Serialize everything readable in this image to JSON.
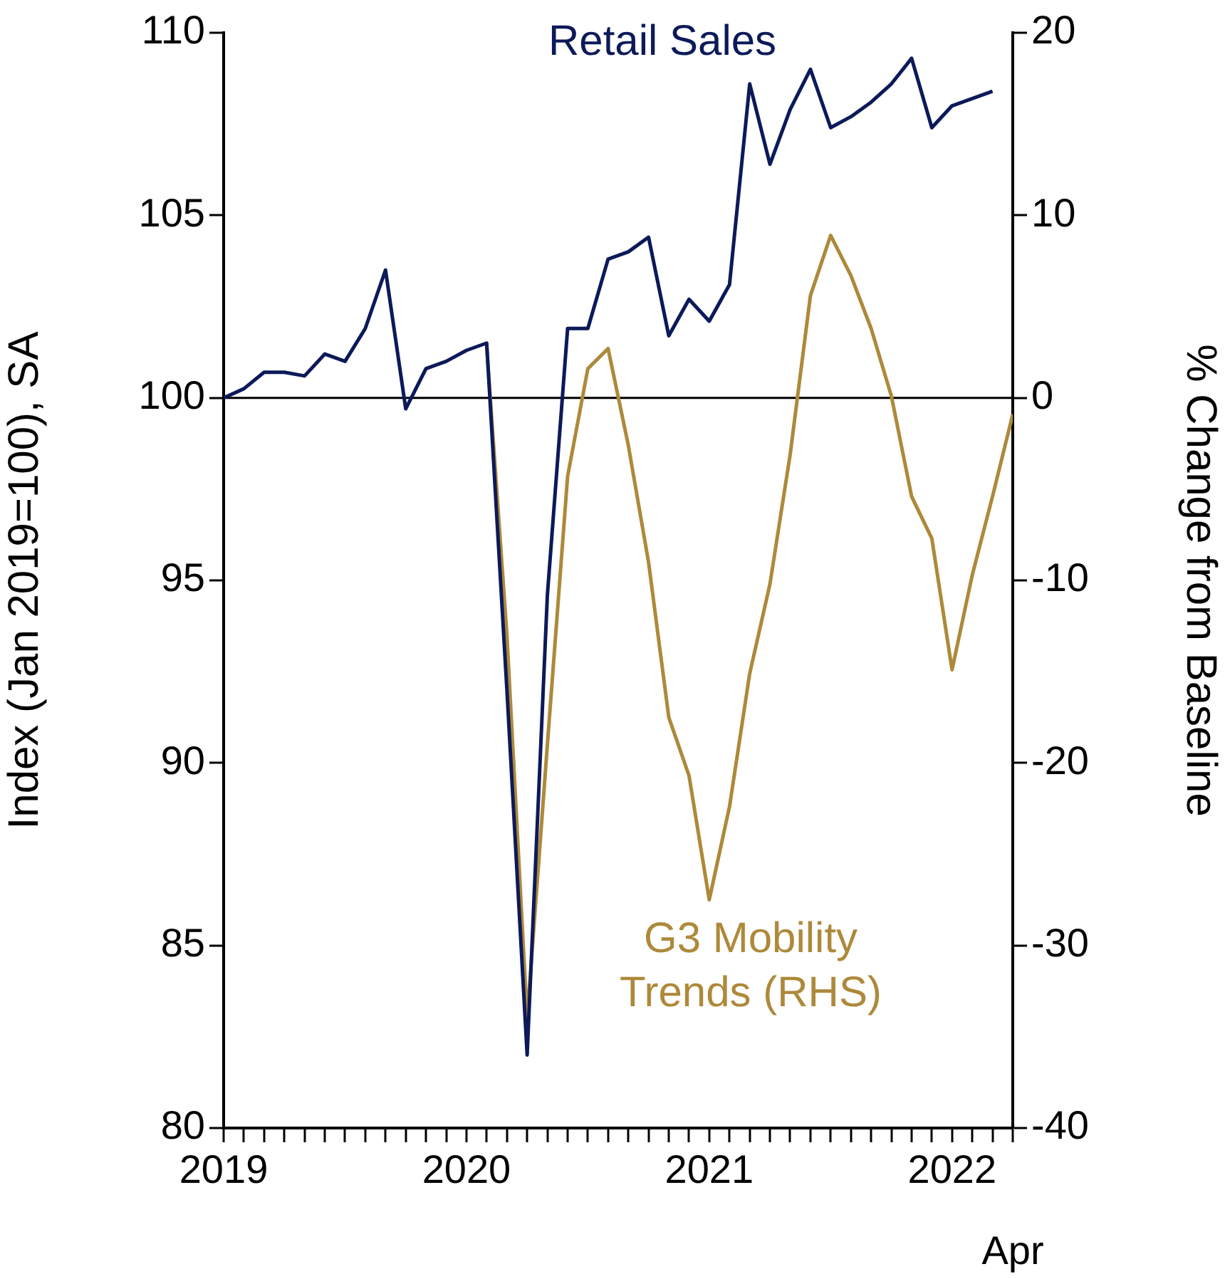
{
  "chart_data": {
    "type": "line",
    "ylabel": "Index (Jan 2019=100), SA",
    "y2label": "% Change from Baseline",
    "x": [
      "2019-01",
      "2019-02",
      "2019-03",
      "2019-04",
      "2019-05",
      "2019-06",
      "2019-07",
      "2019-08",
      "2019-09",
      "2019-10",
      "2019-11",
      "2019-12",
      "2020-01",
      "2020-02",
      "2020-03",
      "2020-04",
      "2020-05",
      "2020-06",
      "2020-07",
      "2020-08",
      "2020-09",
      "2020-10",
      "2020-11",
      "2020-12",
      "2021-01",
      "2021-02",
      "2021-03",
      "2021-04",
      "2021-05",
      "2021-06",
      "2021-07",
      "2021-08",
      "2021-09",
      "2021-10",
      "2021-11",
      "2021-12",
      "2022-01",
      "2022-02",
      "2022-03",
      "2022-04"
    ],
    "series": [
      {
        "name": "Retail Sales",
        "color": "#0c1a5a",
        "values": [
          100.0,
          100.25,
          100.7,
          100.7,
          100.6,
          101.2,
          101.0,
          101.9,
          103.5,
          99.7,
          100.8,
          101.0,
          101.3,
          101.5,
          92,
          82.0,
          94.6,
          101.9,
          101.9,
          103.8,
          104.0,
          104.4,
          101.7,
          102.7,
          102.1,
          103.1,
          108.6,
          106.4,
          107.9,
          109.0,
          107.4,
          107.7,
          108.1,
          108.6,
          109.3,
          107.4,
          108.0,
          108.2,
          108.4,
          null
        ]
      },
      {
        "name": "G3 Mobility Trends (RHS)",
        "color": "#ad893a",
        "axis": "y2",
        "values": [
          null,
          null,
          null,
          null,
          null,
          null,
          null,
          null,
          null,
          null,
          null,
          null,
          null,
          2.8,
          -13.0,
          -34.0,
          -19,
          -4.3,
          1.6,
          2.7,
          -2.6,
          -9.0,
          -17.5,
          -20.7,
          -27.5,
          -22.4,
          -15.1,
          -10.2,
          -3.1,
          5.6,
          8.9,
          6.7,
          3.8,
          0.1,
          -5.4,
          -7.7,
          -14.9,
          -9.7,
          -5.4,
          -0.9
        ]
      }
    ],
    "xlim": [
      "2019-01",
      "2022-04"
    ],
    "xticks": [
      {
        "value": "2019-01",
        "label": "2019"
      },
      {
        "value": "2019-02",
        "label": null
      },
      {
        "value": "2019-03",
        "label": null
      },
      {
        "value": "2019-04",
        "label": null
      },
      {
        "value": "2019-05",
        "label": null
      },
      {
        "value": "2019-06",
        "label": null
      },
      {
        "value": "2019-07",
        "label": null
      },
      {
        "value": "2019-08",
        "label": null
      },
      {
        "value": "2019-09",
        "label": null
      },
      {
        "value": "2019-10",
        "label": null
      },
      {
        "value": "2019-11",
        "label": null
      },
      {
        "value": "2019-12",
        "label": null
      },
      {
        "value": "2020-01",
        "label": "2020"
      },
      {
        "value": "2020-02",
        "label": null
      },
      {
        "value": "2020-03",
        "label": null
      },
      {
        "value": "2020-04",
        "label": null
      },
      {
        "value": "2020-05",
        "label": null
      },
      {
        "value": "2020-06",
        "label": null
      },
      {
        "value": "2020-07",
        "label": null
      },
      {
        "value": "2020-08",
        "label": null
      },
      {
        "value": "2020-09",
        "label": null
      },
      {
        "value": "2020-10",
        "label": null
      },
      {
        "value": "2020-11",
        "label": null
      },
      {
        "value": "2020-12",
        "label": null
      },
      {
        "value": "2021-01",
        "label": "2021"
      },
      {
        "value": "2021-02",
        "label": null
      },
      {
        "value": "2021-03",
        "label": null
      },
      {
        "value": "2021-04",
        "label": null
      },
      {
        "value": "2021-05",
        "label": null
      },
      {
        "value": "2021-06",
        "label": null
      },
      {
        "value": "2021-07",
        "label": null
      },
      {
        "value": "2021-08",
        "label": null
      },
      {
        "value": "2021-09",
        "label": null
      },
      {
        "value": "2021-10",
        "label": null
      },
      {
        "value": "2021-11",
        "label": null
      },
      {
        "value": "2021-12",
        "label": null
      },
      {
        "value": "2022-01",
        "label": "2022"
      },
      {
        "value": "2022-02",
        "label": null
      },
      {
        "value": "2022-03",
        "label": null
      },
      {
        "value": "2022-04",
        "label": null
      }
    ],
    "annotations": [
      "Apr"
    ],
    "ylim": [
      80,
      110
    ],
    "yticks": [
      80,
      85,
      90,
      95,
      100,
      105,
      110
    ],
    "y2lim": [
      -40,
      20
    ],
    "y2ticks": [
      -40,
      -30,
      -20,
      -10,
      0,
      10,
      20
    ],
    "ref_lines": [
      {
        "axis": "y",
        "value": 100,
        "color": "#000000"
      }
    ],
    "grid": false,
    "legend": false,
    "marker": "none",
    "line_style": "solid"
  }
}
